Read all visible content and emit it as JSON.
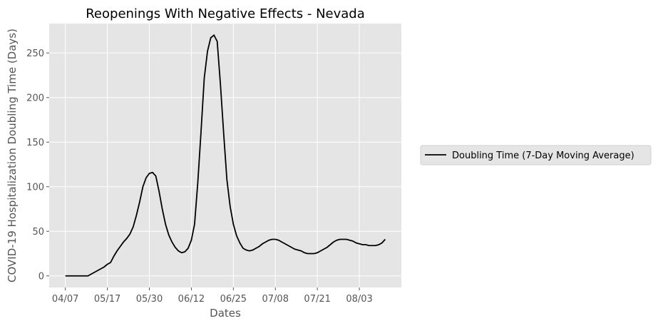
{
  "chart_data": {
    "type": "line",
    "title": "Reopenings With Negative Effects - Nevada",
    "xlabel": "Dates",
    "ylabel": "COVID-19 Hospitalization Doubling Time (Days)",
    "x_tick_labels": [
      "04/07",
      "05/17",
      "05/30",
      "06/12",
      "06/25",
      "07/08",
      "07/21",
      "08/03"
    ],
    "x_ticks_day_index": [
      0,
      13,
      26,
      39,
      52,
      65,
      78,
      91
    ],
    "y_ticks": [
      0,
      50,
      100,
      150,
      200,
      250
    ],
    "xlim_day_index": [
      -5,
      104
    ],
    "ylim": [
      -13,
      283
    ],
    "grid": true,
    "legend_position": "right",
    "colors": {
      "background": "#e5e5e5",
      "grid": "#ffffff",
      "line": "#000000"
    },
    "series": [
      {
        "name": "Doubling Time (7-Day Moving Average)",
        "day_index": [
          0,
          1,
          2,
          3,
          4,
          5,
          6,
          7,
          8,
          9,
          10,
          11,
          12,
          13,
          14,
          15,
          16,
          17,
          18,
          19,
          20,
          21,
          22,
          23,
          24,
          25,
          26,
          27,
          28,
          29,
          30,
          31,
          32,
          33,
          34,
          35,
          36,
          37,
          38,
          39,
          40,
          41,
          42,
          43,
          44,
          45,
          46,
          47,
          48,
          49,
          50,
          51,
          52,
          53,
          54,
          55,
          56,
          57,
          58,
          59,
          60,
          61,
          62,
          63,
          64,
          65,
          66,
          67,
          68,
          69,
          70,
          71,
          72,
          73,
          74,
          75,
          76,
          77,
          78,
          79,
          80,
          81,
          82,
          83,
          84,
          85,
          86,
          87,
          88,
          89,
          90,
          91,
          92,
          93,
          94,
          95,
          96,
          97,
          98,
          99
        ],
        "values": [
          0,
          0,
          0,
          0,
          0,
          0,
          0,
          0,
          2,
          4,
          6,
          8,
          10,
          13,
          15,
          22,
          28,
          33,
          38,
          42,
          47,
          55,
          68,
          83,
          100,
          110,
          115,
          116,
          112,
          95,
          75,
          58,
          46,
          38,
          32,
          28,
          26,
          27,
          31,
          40,
          58,
          105,
          162,
          222,
          252,
          267,
          270,
          263,
          215,
          160,
          108,
          78,
          58,
          45,
          37,
          31,
          29,
          28,
          29,
          31,
          33,
          36,
          38,
          40,
          41,
          41,
          40,
          38,
          36,
          34,
          32,
          30,
          29,
          28,
          26,
          25,
          25,
          25,
          26,
          28,
          30,
          32,
          35,
          38,
          40,
          41,
          41,
          41,
          40,
          39,
          37,
          36,
          35,
          35,
          34,
          34,
          34,
          35,
          37,
          41
        ]
      }
    ]
  }
}
